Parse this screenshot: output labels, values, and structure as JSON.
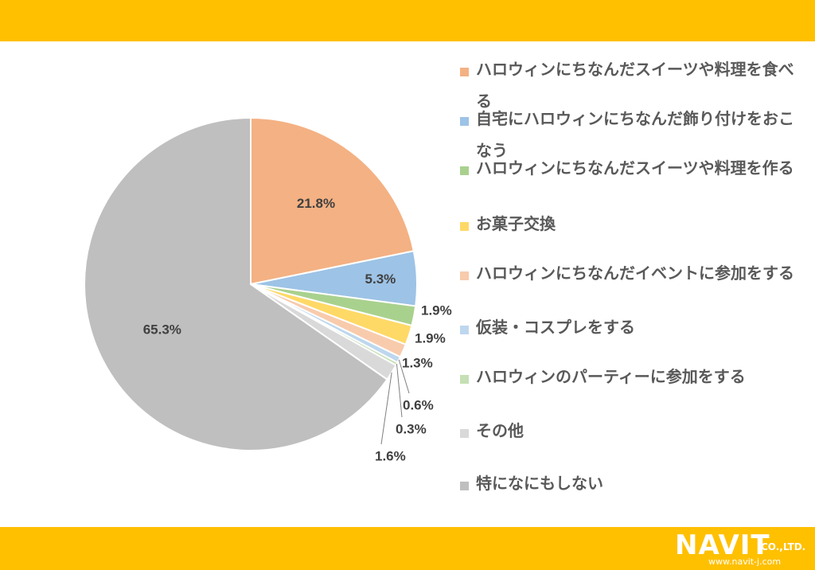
{
  "colors": {
    "band": "#FFC000",
    "leader_line": "#7F7F7F"
  },
  "chart_data": {
    "type": "pie",
    "series": [
      {
        "values": [
          21.8,
          5.3,
          1.9,
          1.9,
          1.3,
          0.6,
          0.3,
          1.6,
          65.3
        ],
        "labels": [
          "21.8%",
          "5.3%",
          "1.9%",
          "1.9%",
          "1.3%",
          "0.6%",
          "0.3%",
          "1.6%",
          "65.3%"
        ],
        "categories": [
          "ハロウィンにちなんだスイーツや料理を食べる",
          "自宅にハロウィンにちなんだ飾り付けをおこなう",
          "ハロウィンにちなんだスイーツや料理を作る",
          "お菓子交換",
          "ハロウィンにちなんだイベントに参加をする",
          "仮装・コスプレをする",
          "ハロウィンのパーティーに参加をする",
          "その他",
          "特になにもしない"
        ],
        "colors": [
          "#F4B183",
          "#9DC3E6",
          "#A9D18E",
          "#FFD966",
          "#F8CBAD",
          "#BDD7EE",
          "#C5E0B4",
          "#D9D9D9",
          "#BFBFBF"
        ]
      }
    ],
    "legend_position": "right",
    "start_angle": "12 o'clock, clockwise"
  },
  "logo": {
    "name": "NAVIT",
    "suffix": "CO.,LTD.",
    "url": "www.navit-j.com"
  }
}
